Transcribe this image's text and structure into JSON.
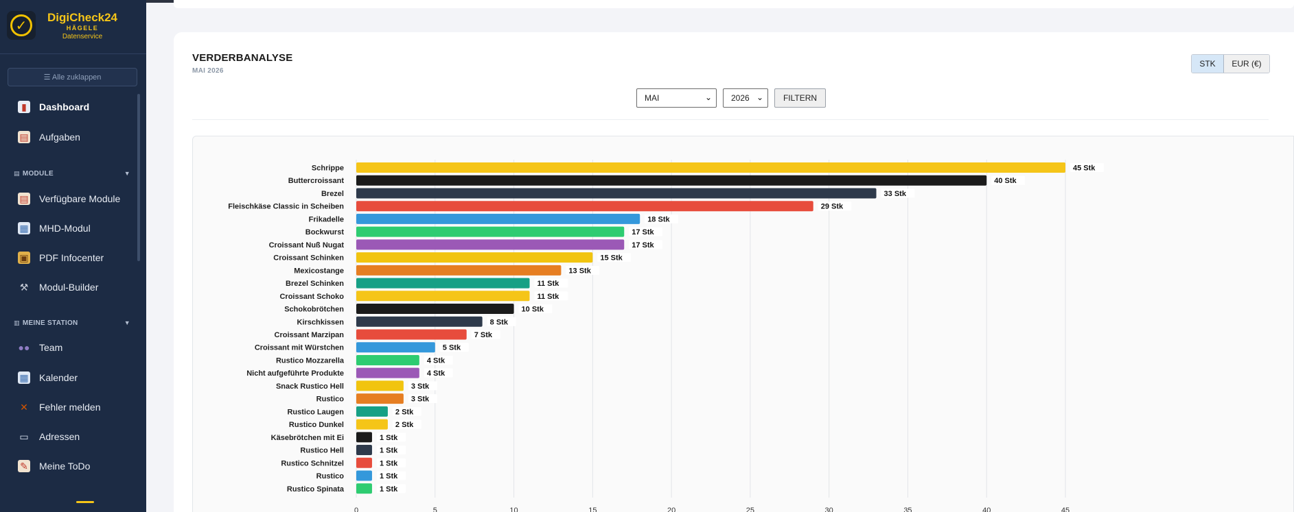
{
  "app": {
    "name": "DigiCheck24",
    "brand_line": "HÄGELE",
    "brand_sub": "Datenservice"
  },
  "sidebar": {
    "collapse_label": "☰ Alle zuklappen",
    "items_top": [
      {
        "label": "Dashboard",
        "icon": "dashboard-icon",
        "active": true
      },
      {
        "label": "Aufgaben",
        "icon": "clipboard-icon"
      }
    ],
    "section_modules": "MODULE",
    "items_modules": [
      {
        "label": "Verfügbare Module",
        "icon": "clipboard-icon"
      },
      {
        "label": "MHD-Modul",
        "icon": "calendar-icon"
      },
      {
        "label": "PDF Infocenter",
        "icon": "box-icon"
      },
      {
        "label": "Modul-Builder",
        "icon": "hammer-icon"
      }
    ],
    "section_station": "MEINE STATION",
    "items_station": [
      {
        "label": "Team",
        "icon": "people-icon"
      },
      {
        "label": "Kalender",
        "icon": "calendar-icon"
      },
      {
        "label": "Fehler melden",
        "icon": "tools-icon"
      },
      {
        "label": "Adressen",
        "icon": "book-icon"
      },
      {
        "label": "Meine ToDo",
        "icon": "memo-icon"
      }
    ]
  },
  "main": {
    "title": "VERDERBANALYSE",
    "subtitle": "MAI 2026",
    "unit_toggle": {
      "stk": "STK",
      "eur": "EUR (€)",
      "selected": "STK"
    },
    "filter": {
      "month": "MAI",
      "year": "2026",
      "button": "FILTERN"
    }
  },
  "colors": {
    "yellow": "#f5c518",
    "black": "#1b1b1b",
    "darkslate": "#2e3a4b",
    "red": "#e74c3c",
    "blue": "#3498db",
    "green": "#2ecc71",
    "purple": "#9b59b6",
    "orange": "#e67e22",
    "teal": "#16a085",
    "sidebar_bg": "#1c2b44"
  },
  "chart_data": {
    "type": "bar",
    "orientation": "horizontal",
    "unit_suffix": " Stk",
    "xlim": [
      0,
      45
    ],
    "xticks": [
      0,
      5,
      10,
      15,
      20,
      25,
      30,
      35,
      40,
      45
    ],
    "grid": true,
    "bars": [
      {
        "label": "Schrippe",
        "value": 45,
        "color": "#f5c518"
      },
      {
        "label": "Buttercroissant",
        "value": 40,
        "color": "#1b1b1b"
      },
      {
        "label": "Brezel",
        "value": 33,
        "color": "#2e3a4b"
      },
      {
        "label": "Fleischkäse Classic in Scheiben",
        "value": 29,
        "color": "#e74c3c"
      },
      {
        "label": "Frikadelle",
        "value": 18,
        "color": "#3498db"
      },
      {
        "label": "Bockwurst",
        "value": 17,
        "color": "#2ecc71"
      },
      {
        "label": "Croissant Nuß Nugat",
        "value": 17,
        "color": "#9b59b6"
      },
      {
        "label": "Croissant Schinken",
        "value": 15,
        "color": "#f1c40f"
      },
      {
        "label": "Mexicostange",
        "value": 13,
        "color": "#e67e22"
      },
      {
        "label": "Brezel Schinken",
        "value": 11,
        "color": "#16a085"
      },
      {
        "label": "Croissant Schoko",
        "value": 11,
        "color": "#f5c518"
      },
      {
        "label": "Schokobrötchen",
        "value": 10,
        "color": "#1b1b1b"
      },
      {
        "label": "Kirschkissen",
        "value": 8,
        "color": "#2e3a4b"
      },
      {
        "label": "Croissant Marzipan",
        "value": 7,
        "color": "#e74c3c"
      },
      {
        "label": "Croissant mit Würstchen",
        "value": 5,
        "color": "#3498db"
      },
      {
        "label": "Rustico Mozzarella",
        "value": 4,
        "color": "#2ecc71"
      },
      {
        "label": "Nicht aufgeführte Produkte",
        "value": 4,
        "color": "#9b59b6"
      },
      {
        "label": "Snack Rustico Hell",
        "value": 3,
        "color": "#f1c40f"
      },
      {
        "label": "Rustico",
        "value": 3,
        "color": "#e67e22"
      },
      {
        "label": "Rustico Laugen",
        "value": 2,
        "color": "#16a085"
      },
      {
        "label": "Rustico Dunkel",
        "value": 2,
        "color": "#f5c518"
      },
      {
        "label": "Käsebrötchen mit Ei",
        "value": 1,
        "color": "#1b1b1b"
      },
      {
        "label": "Rustico Hell",
        "value": 1,
        "color": "#2e3a4b"
      },
      {
        "label": "Rustico Schnitzel",
        "value": 1,
        "color": "#e74c3c"
      },
      {
        "label": "Rustico",
        "value": 1,
        "color": "#3498db"
      },
      {
        "label": "Rustico Spinata",
        "value": 1,
        "color": "#2ecc71"
      }
    ]
  }
}
